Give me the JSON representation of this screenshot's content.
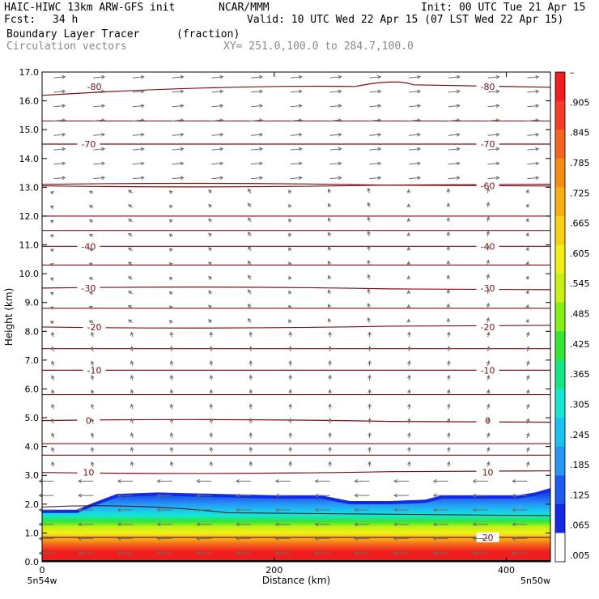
{
  "header": {
    "model": "HAIC-HIWC 13km ARW-GFS init",
    "org": "NCAR/MMM",
    "init": "Init: 00 UTC Tue 21 Apr 15",
    "fcst_label": "Fcst:",
    "fcst_value": "34 h",
    "valid": "Valid: 10 UTC Wed 22 Apr 15 (07 LST Wed 22 Apr 15)",
    "field": "Boundary Layer Tracer",
    "units": "(fraction)",
    "vectors": "Circulation vectors",
    "xy": "XY= 251.0,100.0 to 284.7,100.0"
  },
  "chart_data": {
    "type": "heatmap",
    "xlabel": "Distance (km)",
    "ylabel": "Height (km)",
    "xlim": [
      0,
      438
    ],
    "ylim": [
      0.0,
      17.0
    ],
    "x_ticks": [
      0,
      200,
      400
    ],
    "y_ticks": [
      "0.0",
      "1.0",
      "2.0",
      "3.0",
      "4.0",
      "5.0",
      "6.0",
      "7.0",
      "8.0",
      "9.0",
      "10.0",
      "11.0",
      "12.0",
      "13.0",
      "14.0",
      "15.0",
      "16.0",
      "17.0"
    ],
    "x_end_labels": [
      "5n54w",
      "5n50w"
    ],
    "colorbar": {
      "labels": [
        ".005",
        ".065",
        ".125",
        ".185",
        ".245",
        ".305",
        ".365",
        ".425",
        ".485",
        ".545",
        ".605",
        ".665",
        ".725",
        ".785",
        ".845",
        ".905",
        "–"
      ],
      "colors": [
        "#ffffff",
        "#1428e6",
        "#1e5cf0",
        "#2896f5",
        "#19c3f0",
        "#14e6d2",
        "#14e682",
        "#32e632",
        "#82f014",
        "#c8f014",
        "#f0f014",
        "#f5d214",
        "#f5af14",
        "#f58c14",
        "#f5641e",
        "#f53c28",
        "#f01e1e"
      ]
    },
    "isotherms": [
      {
        "height": 16.5,
        "label": "-80",
        "label_x": [
          45,
          384
        ]
      },
      {
        "height": 14.5,
        "label": "-70",
        "label_x": [
          40,
          384
        ]
      },
      {
        "height": 13.1,
        "label": "-60",
        "label_x": null
      },
      {
        "height": 13.05,
        "label": "-60",
        "label_x": [
          384
        ]
      },
      {
        "height": 10.95,
        "label": "-40",
        "label_x": [
          40,
          384
        ]
      },
      {
        "height": 9.5,
        "label": "-30",
        "label_x": [
          40,
          384
        ]
      },
      {
        "height": 8.15,
        "label": "-20",
        "label_x": [
          45,
          384
        ]
      },
      {
        "height": 6.65,
        "label": "-10",
        "label_x": [
          45,
          384
        ]
      },
      {
        "height": 4.9,
        "label": "0",
        "label_x": [
          40,
          384
        ]
      },
      {
        "height": 3.1,
        "label": "10",
        "label_x": [
          40,
          384
        ]
      },
      {
        "height": 0.85,
        "label": "20",
        "label_x": [
          384
        ]
      }
    ],
    "pbl_top_km": [
      [
        0,
        1.75
      ],
      [
        30,
        1.75
      ],
      [
        45,
        2.0
      ],
      [
        65,
        2.3
      ],
      [
        100,
        2.35
      ],
      [
        150,
        2.3
      ],
      [
        200,
        2.25
      ],
      [
        240,
        2.25
      ],
      [
        265,
        2.05
      ],
      [
        300,
        2.05
      ],
      [
        330,
        2.1
      ],
      [
        345,
        2.25
      ],
      [
        380,
        2.25
      ],
      [
        410,
        2.25
      ],
      [
        425,
        2.35
      ],
      [
        438,
        2.5
      ]
    ]
  }
}
